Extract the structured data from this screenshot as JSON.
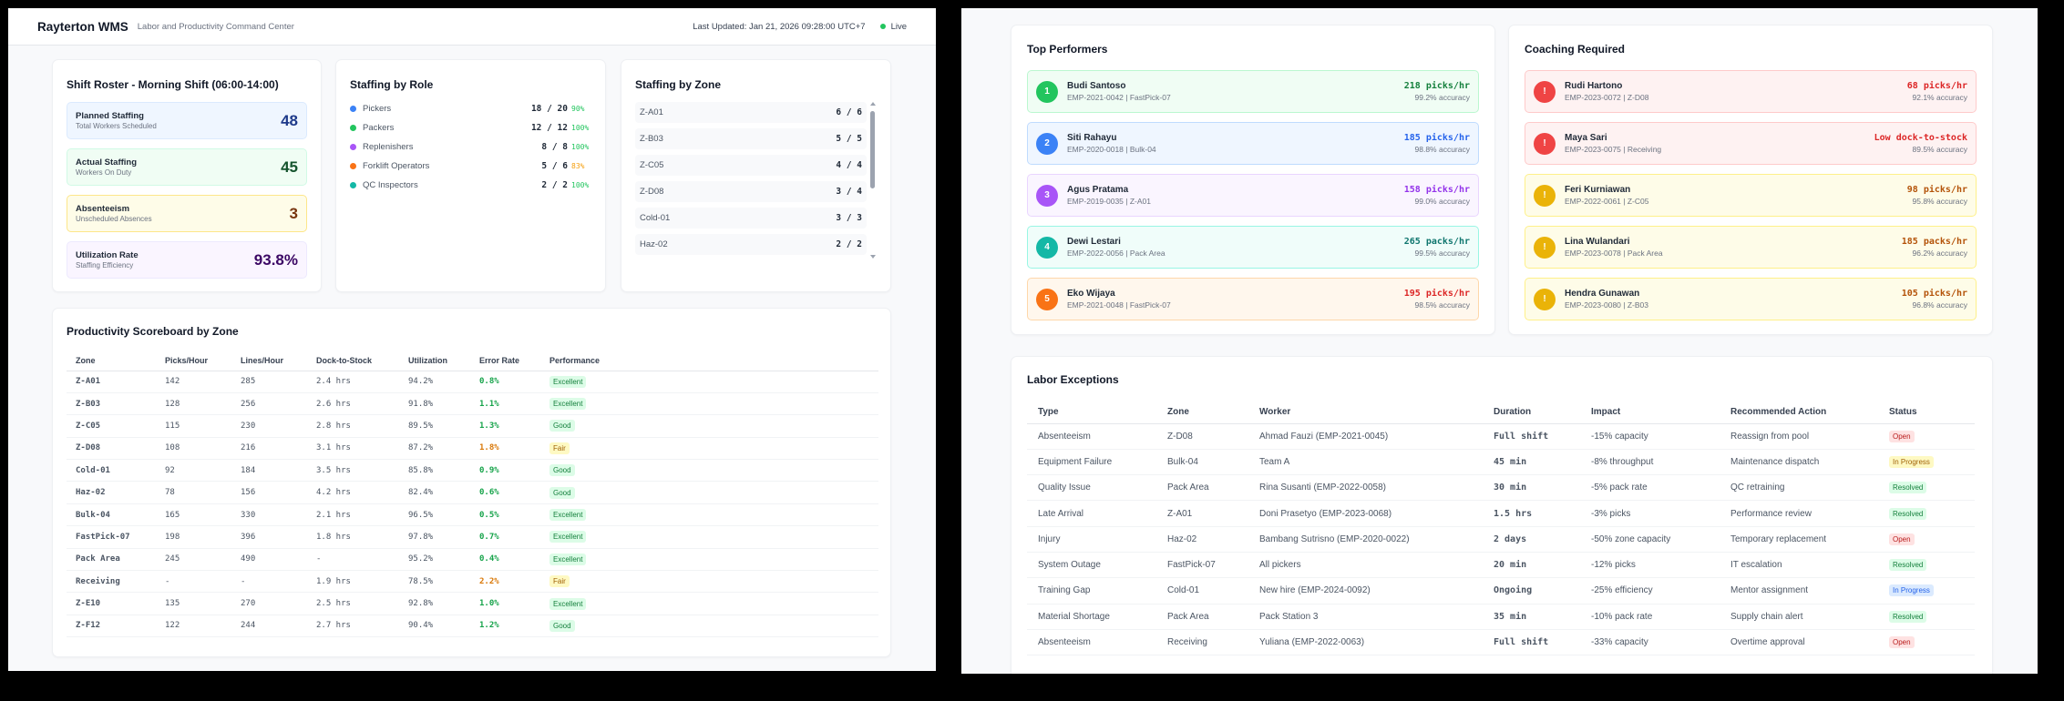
{
  "header": {
    "title": "Rayterton WMS",
    "subtitle": "Labor and Productivity Command Center",
    "last_updated": "Last Updated: Jan 21, 2026 09:28:00 UTC+7",
    "live_label": "Live"
  },
  "roster": {
    "title": "Shift Roster - Morning Shift (06:00-14:00)",
    "stats": [
      {
        "label": "Planned Staffing",
        "sub": "Total Workers Scheduled",
        "value": "48",
        "color": "#1e3a8a"
      },
      {
        "label": "Actual Staffing",
        "sub": "Workers On Duty",
        "value": "45",
        "color": "#14532d"
      },
      {
        "label": "Absenteeism",
        "sub": "Unscheduled Absences",
        "value": "3",
        "color": "#78350f"
      },
      {
        "label": "Utilization Rate",
        "sub": "Staffing Efficiency",
        "value": "93.8%",
        "color": "#3b0764"
      }
    ]
  },
  "roles": {
    "title": "Staffing by Role",
    "items": [
      {
        "name": "Pickers",
        "count": "18 / 20",
        "pct": "90%",
        "dot": "#3b82f6",
        "pct_color": "#22c55e"
      },
      {
        "name": "Packers",
        "count": "12 / 12",
        "pct": "100%",
        "dot": "#22c55e",
        "pct_color": "#22c55e"
      },
      {
        "name": "Replenishers",
        "count": "8 / 8",
        "pct": "100%",
        "dot": "#a855f7",
        "pct_color": "#22c55e"
      },
      {
        "name": "Forklift Operators",
        "count": "5 / 6",
        "pct": "83%",
        "dot": "#f97316",
        "pct_color": "#f59e0b"
      },
      {
        "name": "QC Inspectors",
        "count": "2 / 2",
        "pct": "100%",
        "dot": "#14b8a6",
        "pct_color": "#22c55e"
      }
    ]
  },
  "zones": {
    "title": "Staffing by Zone",
    "items": [
      {
        "name": "Z-A01",
        "count": "6 / 6"
      },
      {
        "name": "Z-B03",
        "count": "5 / 5"
      },
      {
        "name": "Z-C05",
        "count": "4 / 4"
      },
      {
        "name": "Z-D08",
        "count": "3 / 4"
      },
      {
        "name": "Cold-01",
        "count": "3 / 3"
      },
      {
        "name": "Haz-02",
        "count": "2 / 2"
      }
    ]
  },
  "scoreboard": {
    "title": "Productivity Scoreboard by Zone",
    "columns": [
      "Zone",
      "Picks/Hour",
      "Lines/Hour",
      "Dock-to-Stock",
      "Utilization",
      "Error Rate",
      "Performance"
    ],
    "rows": [
      {
        "zone": "Z-A01",
        "picks": "142",
        "lines": "285",
        "dock": "2.4 hrs",
        "util": "94.2%",
        "error": "0.8%",
        "error_color": "#16a34a",
        "perf": "Excellent",
        "perf_class": "b-excellent"
      },
      {
        "zone": "Z-B03",
        "picks": "128",
        "lines": "256",
        "dock": "2.6 hrs",
        "util": "91.8%",
        "error": "1.1%",
        "error_color": "#16a34a",
        "perf": "Excellent",
        "perf_class": "b-excellent"
      },
      {
        "zone": "Z-C05",
        "picks": "115",
        "lines": "230",
        "dock": "2.8 hrs",
        "util": "89.5%",
        "error": "1.3%",
        "error_color": "#16a34a",
        "perf": "Good",
        "perf_class": "b-good"
      },
      {
        "zone": "Z-D08",
        "picks": "108",
        "lines": "216",
        "dock": "3.1 hrs",
        "util": "87.2%",
        "error": "1.8%",
        "error_color": "#d97706",
        "perf": "Fair",
        "perf_class": "b-fair"
      },
      {
        "zone": "Cold-01",
        "picks": "92",
        "lines": "184",
        "dock": "3.5 hrs",
        "util": "85.8%",
        "error": "0.9%",
        "error_color": "#16a34a",
        "perf": "Good",
        "perf_class": "b-good"
      },
      {
        "zone": "Haz-02",
        "picks": "78",
        "lines": "156",
        "dock": "4.2 hrs",
        "util": "82.4%",
        "error": "0.6%",
        "error_color": "#16a34a",
        "perf": "Good",
        "perf_class": "b-good"
      },
      {
        "zone": "Bulk-04",
        "picks": "165",
        "lines": "330",
        "dock": "2.1 hrs",
        "util": "96.5%",
        "error": "0.5%",
        "error_color": "#16a34a",
        "perf": "Excellent",
        "perf_class": "b-excellent"
      },
      {
        "zone": "FastPick-07",
        "picks": "198",
        "lines": "396",
        "dock": "1.8 hrs",
        "util": "97.8%",
        "error": "0.7%",
        "error_color": "#16a34a",
        "perf": "Excellent",
        "perf_class": "b-excellent"
      },
      {
        "zone": "Pack Area",
        "picks": "245",
        "lines": "490",
        "dock": "-",
        "util": "95.2%",
        "error": "0.4%",
        "error_color": "#16a34a",
        "perf": "Excellent",
        "perf_class": "b-excellent"
      },
      {
        "zone": "Receiving",
        "picks": "-",
        "lines": "-",
        "dock": "1.9 hrs",
        "util": "78.5%",
        "error": "2.2%",
        "error_color": "#d97706",
        "perf": "Fair",
        "perf_class": "b-fair"
      },
      {
        "zone": "Z-E10",
        "picks": "135",
        "lines": "270",
        "dock": "2.5 hrs",
        "util": "92.8%",
        "error": "1.0%",
        "error_color": "#16a34a",
        "perf": "Excellent",
        "perf_class": "b-excellent"
      },
      {
        "zone": "Z-F12",
        "picks": "122",
        "lines": "244",
        "dock": "2.7 hrs",
        "util": "90.4%",
        "error": "1.2%",
        "error_color": "#16a34a",
        "perf": "Good",
        "perf_class": "b-good"
      }
    ]
  },
  "top_performers": {
    "title": "Top Performers",
    "items": [
      {
        "rank": "1",
        "name": "Budi Santoso",
        "meta": "EMP-2021-0042 | FastPick-07",
        "metric": "218 picks/hr",
        "accuracy": "99.2% accuracy",
        "accent": "#22c55e",
        "metric_color": "#15803d",
        "bg": "#f0fdf4",
        "border": "#bbf7d0"
      },
      {
        "rank": "2",
        "name": "Siti Rahayu",
        "meta": "EMP-2020-0018 | Bulk-04",
        "metric": "185 picks/hr",
        "accuracy": "98.8% accuracy",
        "accent": "#3b82f6",
        "metric_color": "#2563eb",
        "bg": "#eff6ff",
        "border": "#bfdbfe"
      },
      {
        "rank": "3",
        "name": "Agus Pratama",
        "meta": "EMP-2019-0035 | Z-A01",
        "metric": "158 picks/hr",
        "accuracy": "99.0% accuracy",
        "accent": "#a855f7",
        "metric_color": "#9333ea",
        "bg": "#faf5ff",
        "border": "#e9d5ff"
      },
      {
        "rank": "4",
        "name": "Dewi Lestari",
        "meta": "EMP-2022-0056 | Pack Area",
        "metric": "265 packs/hr",
        "accuracy": "99.5% accuracy",
        "accent": "#14b8a6",
        "metric_color": "#0f766e",
        "bg": "#f0fdfa",
        "border": "#99f6e4"
      },
      {
        "rank": "5",
        "name": "Eko Wijaya",
        "meta": "EMP-2021-0048 | FastPick-07",
        "metric": "195 picks/hr",
        "accuracy": "98.5% accuracy",
        "accent": "#f97316",
        "metric_color": "#dc2626",
        "bg": "#fff7ed",
        "border": "#fed7aa"
      }
    ]
  },
  "coaching": {
    "title": "Coaching Required",
    "items": [
      {
        "icon": "!",
        "name": "Rudi Hartono",
        "meta": "EMP-2023-0072 | Z-D08",
        "metric": "68 picks/hr",
        "accuracy": "92.1% accuracy",
        "accent": "#ef4444",
        "metric_color": "#dc2626",
        "bg": "#fef2f2",
        "border": "#fecaca"
      },
      {
        "icon": "!",
        "name": "Maya Sari",
        "meta": "EMP-2023-0075 | Receiving",
        "metric": "Low dock-to-stock",
        "accuracy": "89.5% accuracy",
        "accent": "#ef4444",
        "metric_color": "#dc2626",
        "bg": "#fef2f2",
        "border": "#fecaca"
      },
      {
        "icon": "!",
        "name": "Feri Kurniawan",
        "meta": "EMP-2022-0061 | Z-C05",
        "metric": "98 picks/hr",
        "accuracy": "95.8% accuracy",
        "accent": "#eab308",
        "metric_color": "#b45309",
        "bg": "#fefce8",
        "border": "#fef08a"
      },
      {
        "icon": "!",
        "name": "Lina Wulandari",
        "meta": "EMP-2023-0078 | Pack Area",
        "metric": "185 packs/hr",
        "accuracy": "96.2% accuracy",
        "accent": "#eab308",
        "metric_color": "#b45309",
        "bg": "#fefce8",
        "border": "#fef08a"
      },
      {
        "icon": "!",
        "name": "Hendra Gunawan",
        "meta": "EMP-2023-0080 | Z-B03",
        "metric": "105 picks/hr",
        "accuracy": "96.8% accuracy",
        "accent": "#eab308",
        "metric_color": "#b45309",
        "bg": "#fefce8",
        "border": "#fef08a"
      }
    ]
  },
  "exceptions": {
    "title": "Labor Exceptions",
    "columns": [
      "Type",
      "Zone",
      "Worker",
      "Duration",
      "Impact",
      "Recommended Action",
      "Status"
    ],
    "rows": [
      {
        "type": "Absenteeism",
        "zone": "Z-D08",
        "worker": "Ahmad Fauzi (EMP-2021-0045)",
        "duration": "Full shift",
        "impact": "-15% capacity",
        "action": "Reassign from pool",
        "status": "Open",
        "status_class": "b-open"
      },
      {
        "type": "Equipment Failure",
        "zone": "Bulk-04",
        "worker": "Team A",
        "duration": "45 min",
        "impact": "-8% throughput",
        "action": "Maintenance dispatch",
        "status": "In Progress",
        "status_class": "b-progress-y"
      },
      {
        "type": "Quality Issue",
        "zone": "Pack Area",
        "worker": "Rina Susanti (EMP-2022-0058)",
        "duration": "30 min",
        "impact": "-5% pack rate",
        "action": "QC retraining",
        "status": "Resolved",
        "status_class": "b-resolved"
      },
      {
        "type": "Late Arrival",
        "zone": "Z-A01",
        "worker": "Doni Prasetyo (EMP-2023-0068)",
        "duration": "1.5 hrs",
        "impact": "-3% picks",
        "action": "Performance review",
        "status": "Resolved",
        "status_class": "b-resolved"
      },
      {
        "type": "Injury",
        "zone": "Haz-02",
        "worker": "Bambang Sutrisno (EMP-2020-0022)",
        "duration": "2 days",
        "impact": "-50% zone capacity",
        "action": "Temporary replacement",
        "status": "Open",
        "status_class": "b-open"
      },
      {
        "type": "System Outage",
        "zone": "FastPick-07",
        "worker": "All pickers",
        "duration": "20 min",
        "impact": "-12% picks",
        "action": "IT escalation",
        "status": "Resolved",
        "status_class": "b-resolved"
      },
      {
        "type": "Training Gap",
        "zone": "Cold-01",
        "worker": "New hire (EMP-2024-0092)",
        "duration": "Ongoing",
        "impact": "-25% efficiency",
        "action": "Mentor assignment",
        "status": "In Progress",
        "status_class": "b-progress-b"
      },
      {
        "type": "Material Shortage",
        "zone": "Pack Area",
        "worker": "Pack Station 3",
        "duration": "35 min",
        "impact": "-10% pack rate",
        "action": "Supply chain alert",
        "status": "Resolved",
        "status_class": "b-resolved"
      },
      {
        "type": "Absenteeism",
        "zone": "Receiving",
        "worker": "Yuliana (EMP-2022-0063)",
        "duration": "Full shift",
        "impact": "-33% capacity",
        "action": "Overtime approval",
        "status": "Open",
        "status_class": "b-open"
      }
    ]
  }
}
